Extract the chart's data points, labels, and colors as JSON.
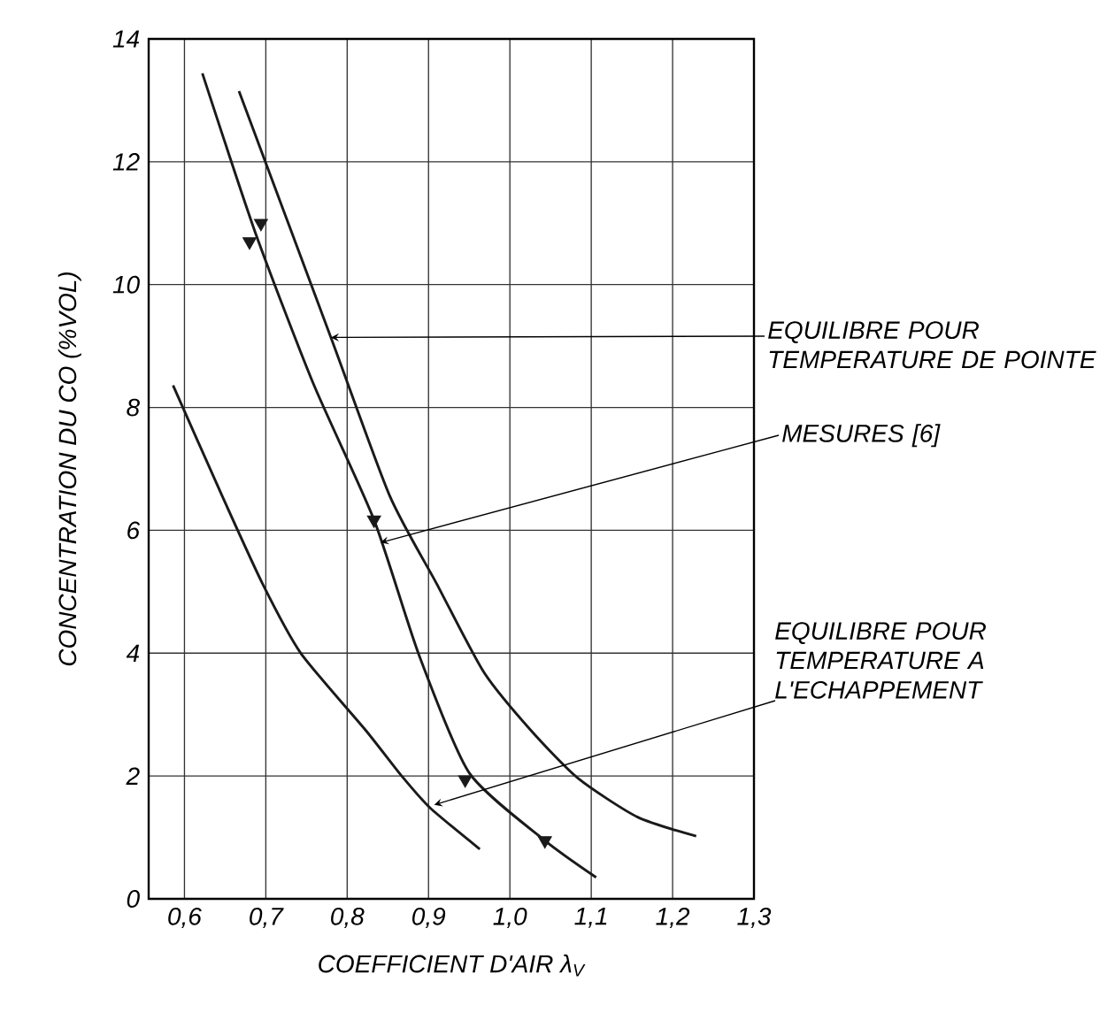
{
  "chart_data": {
    "type": "line",
    "xlabel": "COEFFICIENT D'AIR λ$_{V}$",
    "ylabel": "CONCENTRATION DU CO (%VOL)",
    "xlim": [
      0.556,
      1.3
    ],
    "ylim": [
      0,
      14
    ],
    "xticks": [
      {
        "value": 0.6,
        "label": "0,6"
      },
      {
        "value": 0.7,
        "label": "0,7"
      },
      {
        "value": 0.8,
        "label": "0,8"
      },
      {
        "value": 0.9,
        "label": "0,9"
      },
      {
        "value": 1.0,
        "label": "1,0"
      },
      {
        "value": 1.1,
        "label": "1,1"
      },
      {
        "value": 1.2,
        "label": "1,2"
      },
      {
        "value": 1.3,
        "label": "1,3"
      }
    ],
    "yticks": [
      0,
      2,
      4,
      6,
      8,
      10,
      12,
      14
    ],
    "grid": true,
    "line_style": "solid",
    "marker": "none",
    "series": [
      {
        "color": "#1a1a1a",
        "x": [
          0.586,
          0.646,
          0.696,
          0.743,
          0.823,
          0.867,
          0.902,
          0.963
        ],
        "values": [
          8.36,
          6.57,
          5.13,
          4.0,
          2.74,
          2.0,
          1.48,
          0.81
        ]
      },
      {
        "color": "#1a1a1a",
        "x": [
          0.622,
          0.687,
          0.758,
          0.833,
          0.888,
          0.95,
          1.043,
          1.106
        ],
        "values": [
          13.44,
          10.85,
          8.4,
          6.17,
          3.98,
          2.05,
          0.95,
          0.35
        ]
      },
      {
        "type": "scatter",
        "marker": "triangle",
        "color": "#1a1a1a",
        "x": [
          0.694,
          0.68,
          0.833,
          0.945,
          1.043
        ],
        "values": [
          11.0,
          10.7,
          6.17,
          1.94,
          0.95
        ]
      },
      {
        "color": "#1a1a1a",
        "x": [
          0.667,
          0.78,
          0.852,
          0.91,
          0.968,
          1.026,
          1.084,
          1.157,
          1.229
        ],
        "values": [
          13.15,
          9.14,
          6.57,
          5.13,
          3.69,
          2.74,
          1.96,
          1.33,
          1.02
        ]
      }
    ],
    "annotations": [
      {
        "text": "EQUILIBRE POUR TEMPERATURE DE POINTE",
        "x": 0.78,
        "y": 9.14
      },
      {
        "text": "MESURES [6]",
        "x": 0.841,
        "y": 5.8
      },
      {
        "text": "EQUILIBRE POUR TEMPERATURE A L'ECHAPPEMENT",
        "x": 0.907,
        "y": 1.53
      }
    ]
  }
}
